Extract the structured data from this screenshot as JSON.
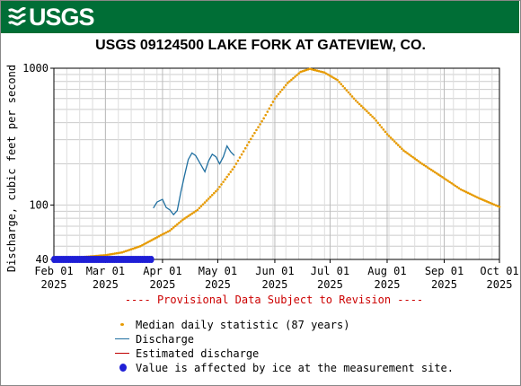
{
  "header": {
    "logo_text": "USGS",
    "logo_icon": "usgs-wave-icon",
    "banner_color": "#006e36"
  },
  "chart_data": {
    "type": "line",
    "title": "USGS 09124500 LAKE FORK AT GATEVIEW, CO.",
    "ylabel": "Discharge, cubic feet per second",
    "xlabel": "",
    "yscale": "log",
    "ylim": [
      40,
      1000
    ],
    "y_tick_labels": [
      "40",
      "100",
      "1000"
    ],
    "x_tick_labels": [
      {
        "line1": "Feb 01",
        "line2": "2025"
      },
      {
        "line1": "Mar 01",
        "line2": "2025"
      },
      {
        "line1": "Apr 01",
        "line2": "2025"
      },
      {
        "line1": "May 01",
        "line2": "2025"
      },
      {
        "line1": "Jun 01",
        "line2": "2025"
      },
      {
        "line1": "Jul 01",
        "line2": "2025"
      },
      {
        "line1": "Aug 01",
        "line2": "2025"
      },
      {
        "line1": "Sep 01",
        "line2": "2025"
      },
      {
        "line1": "Oct 01",
        "line2": "2025"
      }
    ],
    "xlim": [
      "2025-02-01",
      "2025-10-01"
    ],
    "grid": true,
    "colors": {
      "median": "#e69a00",
      "discharge": "#1f6fa0",
      "estimated": "#c00000",
      "ice": "#1f1fd6"
    },
    "series": [
      {
        "name": "Median daily statistic (87 years)",
        "style": "dots",
        "points": [
          [
            "2025-02-01",
            40
          ],
          [
            "2025-02-10",
            41
          ],
          [
            "2025-02-20",
            42
          ],
          [
            "2025-03-01",
            43
          ],
          [
            "2025-03-10",
            45
          ],
          [
            "2025-03-20",
            50
          ],
          [
            "2025-03-31",
            60
          ],
          [
            "2025-04-05",
            65
          ],
          [
            "2025-04-12",
            78
          ],
          [
            "2025-04-20",
            92
          ],
          [
            "2025-05-01",
            130
          ],
          [
            "2025-05-10",
            190
          ],
          [
            "2025-05-20",
            320
          ],
          [
            "2025-05-26",
            430
          ],
          [
            "2025-06-01",
            600
          ],
          [
            "2025-06-08",
            780
          ],
          [
            "2025-06-15",
            940
          ],
          [
            "2025-06-20",
            990
          ],
          [
            "2025-06-28",
            930
          ],
          [
            "2025-07-05",
            820
          ],
          [
            "2025-07-15",
            580
          ],
          [
            "2025-07-25",
            430
          ],
          [
            "2025-08-01",
            330
          ],
          [
            "2025-08-10",
            250
          ],
          [
            "2025-08-20",
            200
          ],
          [
            "2025-08-31",
            160
          ],
          [
            "2025-09-10",
            130
          ],
          [
            "2025-09-20",
            112
          ],
          [
            "2025-10-01",
            97
          ]
        ]
      },
      {
        "name": "Discharge",
        "style": "line",
        "points": [
          [
            "2025-03-27",
            95
          ],
          [
            "2025-03-29",
            105
          ],
          [
            "2025-04-01",
            110
          ],
          [
            "2025-04-03",
            96
          ],
          [
            "2025-04-05",
            92
          ],
          [
            "2025-04-07",
            85
          ],
          [
            "2025-04-09",
            91
          ],
          [
            "2025-04-11",
            125
          ],
          [
            "2025-04-13",
            165
          ],
          [
            "2025-04-15",
            215
          ],
          [
            "2025-04-17",
            240
          ],
          [
            "2025-04-19",
            230
          ],
          [
            "2025-04-22",
            195
          ],
          [
            "2025-04-24",
            175
          ],
          [
            "2025-04-26",
            210
          ],
          [
            "2025-04-28",
            235
          ],
          [
            "2025-04-30",
            225
          ],
          [
            "2025-05-02",
            200
          ],
          [
            "2025-05-04",
            225
          ],
          [
            "2025-05-06",
            270
          ],
          [
            "2025-05-08",
            245
          ],
          [
            "2025-05-10",
            230
          ]
        ]
      },
      {
        "name": "Estimated discharge",
        "style": "line",
        "points": []
      },
      {
        "name": "Value is affected by ice at the measurement site.",
        "style": "markers",
        "points": [
          [
            "2025-02-01",
            40
          ],
          [
            "2025-02-10",
            40
          ],
          [
            "2025-02-20",
            40
          ],
          [
            "2025-03-01",
            40
          ],
          [
            "2025-03-10",
            40
          ],
          [
            "2025-03-20",
            40
          ],
          [
            "2025-03-26",
            40
          ]
        ]
      }
    ]
  },
  "footer": {
    "provisional": "---- Provisional Data Subject to Revision ----"
  }
}
